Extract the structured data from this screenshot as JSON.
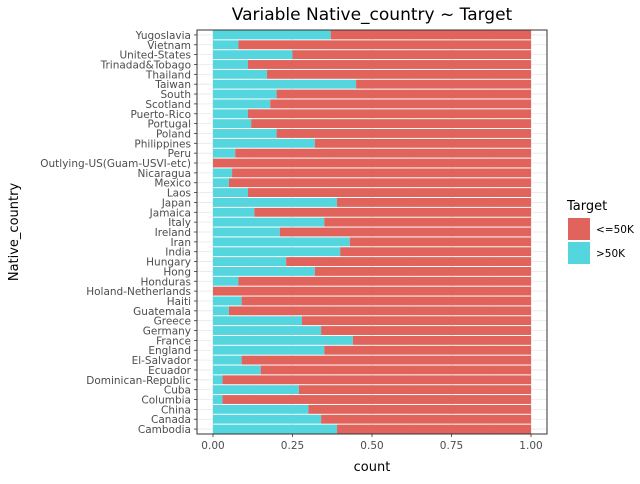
{
  "chart_data": {
    "type": "bar",
    "orientation": "horizontal",
    "stacked": "fill",
    "title": "Variable Native_country ~ Target",
    "xlabel": "count",
    "ylabel": "Native_country",
    "xlim": [
      0,
      1
    ],
    "xticks": [
      "0.00",
      "0.25",
      "0.50",
      "0.75",
      "1.00"
    ],
    "grid": true,
    "legend_title": "Target",
    "legend_position": "right",
    "categories": [
      "Yugoslavia",
      "Vietnam",
      "United-States",
      "Trinadad&Tobago",
      "Thailand",
      "Taiwan",
      "South",
      "Scotland",
      "Puerto-Rico",
      "Portugal",
      "Poland",
      "Philippines",
      "Peru",
      "Outlying-US(Guam-USVI-etc)",
      "Nicaragua",
      "Mexico",
      "Laos",
      "Japan",
      "Jamaica",
      "Italy",
      "Ireland",
      "Iran",
      "India",
      "Hungary",
      "Hong",
      "Honduras",
      "Holand-Netherlands",
      "Haiti",
      "Guatemala",
      "Greece",
      "Germany",
      "France",
      "England",
      "El-Salvador",
      "Ecuador",
      "Dominican-Republic",
      "Cuba",
      "Columbia",
      "China",
      "Canada",
      "Cambodia"
    ],
    "series": [
      {
        "name": "<=50K",
        "color": "#e0635c",
        "values": [
          0.63,
          0.92,
          0.75,
          0.89,
          0.83,
          0.55,
          0.8,
          0.82,
          0.89,
          0.88,
          0.8,
          0.68,
          0.93,
          1.0,
          0.94,
          0.95,
          0.89,
          0.61,
          0.87,
          0.65,
          0.79,
          0.57,
          0.6,
          0.77,
          0.68,
          0.92,
          1.0,
          0.91,
          0.95,
          0.72,
          0.66,
          0.56,
          0.65,
          0.91,
          0.85,
          0.97,
          0.73,
          0.97,
          0.7,
          0.66,
          0.61
        ]
      },
      {
        "name": ">50K",
        "color": "#55d6de",
        "values": [
          0.37,
          0.08,
          0.25,
          0.11,
          0.17,
          0.45,
          0.2,
          0.18,
          0.11,
          0.12,
          0.2,
          0.32,
          0.07,
          0.0,
          0.06,
          0.05,
          0.11,
          0.39,
          0.13,
          0.35,
          0.21,
          0.43,
          0.4,
          0.23,
          0.32,
          0.08,
          0.0,
          0.09,
          0.05,
          0.28,
          0.34,
          0.44,
          0.35,
          0.09,
          0.15,
          0.03,
          0.27,
          0.03,
          0.3,
          0.34,
          0.39
        ]
      }
    ]
  }
}
